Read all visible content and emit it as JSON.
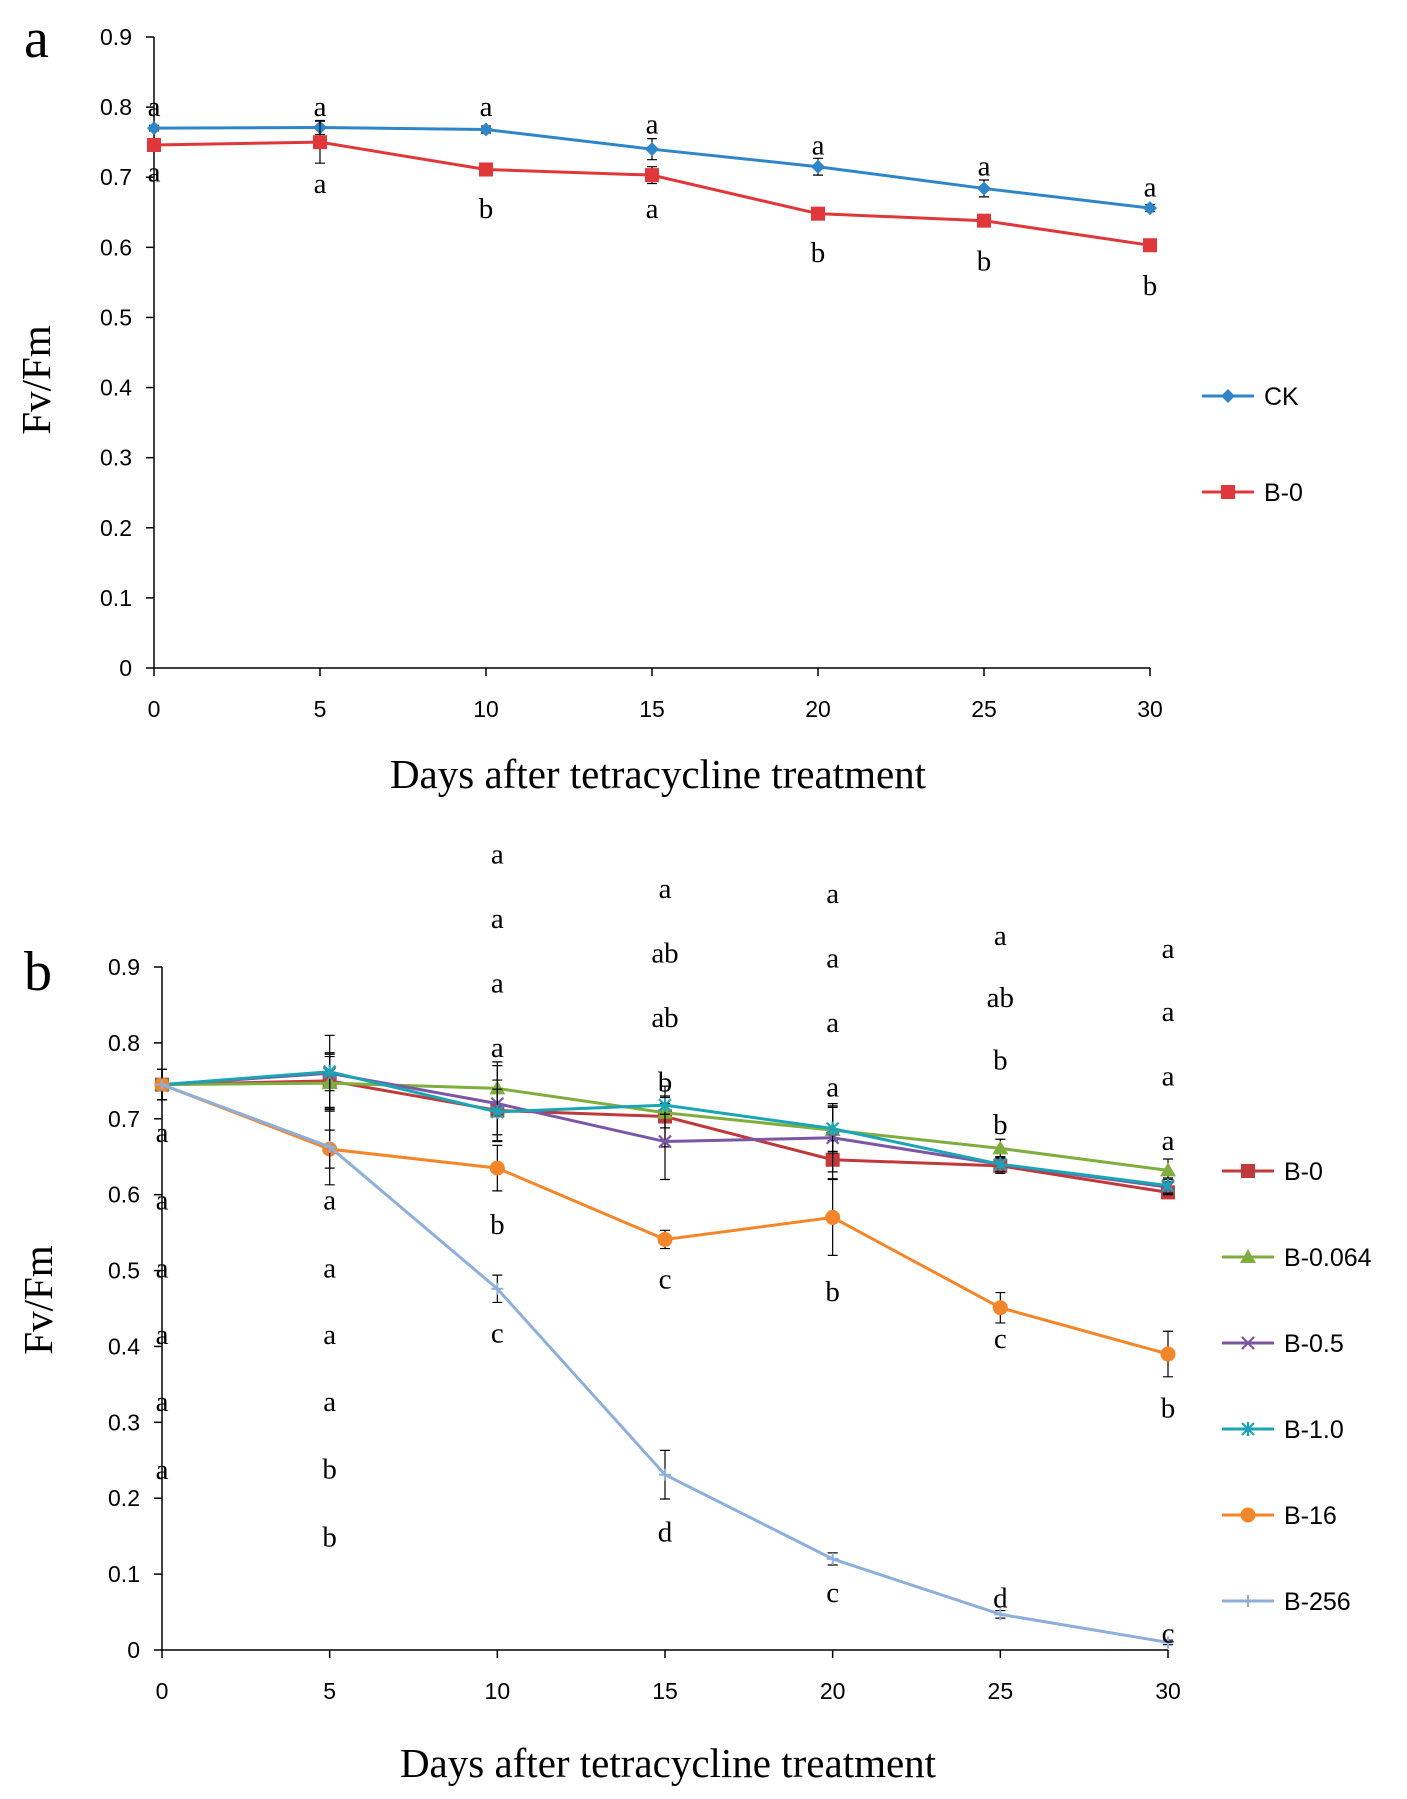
{
  "chart_data": [
    {
      "panel_label": "a",
      "type": "line",
      "xlabel": "Days after tetracycline treatment",
      "ylabel": "Fv/Fm",
      "xlim": [
        0,
        30
      ],
      "ylim": [
        0,
        0.9
      ],
      "x_ticks": [
        "0",
        "5",
        "10",
        "15",
        "20",
        "25",
        "30"
      ],
      "y_ticks": [
        "0",
        "0.1",
        "0.2",
        "0.3",
        "0.4",
        "0.5",
        "0.6",
        "0.7",
        "0.8",
        "0.9"
      ],
      "x": [
        0,
        5,
        10,
        15,
        20,
        25,
        30
      ],
      "legend_position": "right",
      "series": [
        {
          "name": "CK",
          "color": "#2e86c8",
          "marker": "diamond",
          "values": [
            0.77,
            0.771,
            0.768,
            0.74,
            0.715,
            0.684,
            0.656
          ],
          "errors": [
            0.004,
            0.01,
            0.005,
            0.015,
            0.012,
            0.012,
            0.005
          ]
        },
        {
          "name": "B-0",
          "color": "#e0373a",
          "marker": "square",
          "values": [
            0.746,
            0.75,
            0.711,
            0.703,
            0.648,
            0.638,
            0.603
          ],
          "errors": [
            0.005,
            0.03,
            0.005,
            0.012,
            0.006,
            0.008,
            0.005
          ]
        }
      ],
      "annotations": [
        {
          "x": 0,
          "y": 0.8,
          "text": "a"
        },
        {
          "x": 0,
          "y": 0.707,
          "text": "a"
        },
        {
          "x": 5,
          "y": 0.8,
          "text": "a"
        },
        {
          "x": 5,
          "y": 0.69,
          "text": "a"
        },
        {
          "x": 10,
          "y": 0.8,
          "text": "a"
        },
        {
          "x": 10,
          "y": 0.655,
          "text": "b"
        },
        {
          "x": 15,
          "y": 0.775,
          "text": "a"
        },
        {
          "x": 15,
          "y": 0.655,
          "text": "a"
        },
        {
          "x": 20,
          "y": 0.745,
          "text": "a"
        },
        {
          "x": 20,
          "y": 0.592,
          "text": "b"
        },
        {
          "x": 25,
          "y": 0.715,
          "text": "a"
        },
        {
          "x": 25,
          "y": 0.58,
          "text": "b"
        },
        {
          "x": 30,
          "y": 0.685,
          "text": "a"
        },
        {
          "x": 30,
          "y": 0.545,
          "text": "b"
        }
      ]
    },
    {
      "panel_label": "b",
      "type": "line",
      "xlabel": "Days after tetracycline treatment",
      "ylabel": "Fv/Fm",
      "xlim": [
        0,
        30
      ],
      "ylim": [
        0,
        0.9
      ],
      "x_ticks": [
        "0",
        "5",
        "10",
        "15",
        "20",
        "25",
        "30"
      ],
      "y_ticks": [
        "0",
        "0.1",
        "0.2",
        "0.3",
        "0.4",
        "0.5",
        "0.6",
        "0.7",
        "0.8",
        "0.9"
      ],
      "x": [
        0,
        5,
        10,
        15,
        20,
        25,
        30
      ],
      "legend_position": "right",
      "series": [
        {
          "name": "B-0",
          "color": "#c0393b",
          "marker": "square",
          "values": [
            0.745,
            0.75,
            0.711,
            0.703,
            0.646,
            0.638,
            0.603
          ],
          "errors": [
            0.02,
            0.035,
            0.04,
            0.04,
            0.025,
            0.01,
            0.008
          ]
        },
        {
          "name": "B-0.064",
          "color": "#7fae3e",
          "marker": "triangle",
          "values": [
            0.745,
            0.747,
            0.74,
            0.708,
            0.685,
            0.661,
            0.632
          ],
          "errors": [
            0.02,
            0.035,
            0.035,
            0.02,
            0.03,
            0.012,
            0.015
          ]
        },
        {
          "name": "B-0.5",
          "color": "#7b56a4",
          "marker": "x",
          "values": [
            0.745,
            0.76,
            0.72,
            0.67,
            0.675,
            0.64,
            0.61
          ],
          "errors": [
            0.02,
            0.05,
            0.05,
            0.05,
            0.045,
            0.01,
            0.01
          ]
        },
        {
          "name": "B-1.0",
          "color": "#1aa5b5",
          "marker": "star",
          "values": [
            0.745,
            0.762,
            0.709,
            0.718,
            0.687,
            0.64,
            0.612
          ],
          "errors": [
            0.02,
            0.025,
            0.03,
            0.012,
            0.03,
            0.01,
            0.01
          ]
        },
        {
          "name": "B-16",
          "color": "#f4862a",
          "marker": "circle",
          "values": [
            0.745,
            0.66,
            0.635,
            0.541,
            0.57,
            0.451,
            0.39
          ],
          "errors": [
            0.02,
            0.025,
            0.03,
            0.012,
            0.05,
            0.02,
            0.03
          ]
        },
        {
          "name": "B-256",
          "color": "#8eaedb",
          "marker": "plus",
          "values": [
            0.745,
            0.663,
            0.476,
            0.231,
            0.12,
            0.047,
            0.01
          ],
          "errors": [
            0.02,
            0.05,
            0.018,
            0.032,
            0.008,
            0.005,
            0.003
          ]
        }
      ],
      "annotations": [
        {
          "x": 10,
          "y": 1.048,
          "text": "a"
        },
        {
          "x": 10,
          "y": 0.963,
          "text": "a"
        },
        {
          "x": 10,
          "y": 0.878,
          "text": "a"
        },
        {
          "x": 10,
          "y": 0.793,
          "text": "a"
        },
        {
          "x": 10,
          "y": 0.56,
          "text": "b"
        },
        {
          "x": 10,
          "y": 0.417,
          "text": "c"
        },
        {
          "x": 15,
          "y": 1.003,
          "text": "a"
        },
        {
          "x": 15,
          "y": 0.918,
          "text": "ab"
        },
        {
          "x": 15,
          "y": 0.833,
          "text": "ab"
        },
        {
          "x": 15,
          "y": 0.748,
          "text": "b"
        },
        {
          "x": 15,
          "y": 0.488,
          "text": "c"
        },
        {
          "x": 15,
          "y": 0.155,
          "text": "d"
        },
        {
          "x": 20,
          "y": 0.996,
          "text": "a"
        },
        {
          "x": 20,
          "y": 0.911,
          "text": "a"
        },
        {
          "x": 20,
          "y": 0.826,
          "text": "a"
        },
        {
          "x": 20,
          "y": 0.741,
          "text": "a"
        },
        {
          "x": 20,
          "y": 0.472,
          "text": "b"
        },
        {
          "x": 20,
          "y": 0.075,
          "text": "c"
        },
        {
          "x": 25,
          "y": 0.941,
          "text": "a"
        },
        {
          "x": 25,
          "y": 0.859,
          "text": "ab"
        },
        {
          "x": 25,
          "y": 0.777,
          "text": "b"
        },
        {
          "x": 25,
          "y": 0.692,
          "text": "b"
        },
        {
          "x": 25,
          "y": 0.41,
          "text": "c"
        },
        {
          "x": 25,
          "y": 0.068,
          "text": "d"
        },
        {
          "x": 30,
          "y": 0.924,
          "text": "a"
        },
        {
          "x": 30,
          "y": 0.841,
          "text": "a"
        },
        {
          "x": 30,
          "y": 0.756,
          "text": "a"
        },
        {
          "x": 30,
          "y": 0.671,
          "text": "a"
        },
        {
          "x": 30,
          "y": 0.318,
          "text": "b"
        },
        {
          "x": 30,
          "y": 0.022,
          "text": "c"
        },
        {
          "x": 0,
          "y": 0.681,
          "text": "a"
        },
        {
          "x": 0,
          "y": 0.592,
          "text": "a"
        },
        {
          "x": 0,
          "y": 0.503,
          "text": "a"
        },
        {
          "x": 0,
          "y": 0.415,
          "text": "a"
        },
        {
          "x": 0,
          "y": 0.327,
          "text": "a"
        },
        {
          "x": 0,
          "y": 0.237,
          "text": "a"
        },
        {
          "x": 5,
          "y": 0.592,
          "text": "a"
        },
        {
          "x": 5,
          "y": 0.503,
          "text": "a"
        },
        {
          "x": 5,
          "y": 0.415,
          "text": "a"
        },
        {
          "x": 5,
          "y": 0.327,
          "text": "a"
        },
        {
          "x": 5,
          "y": 0.238,
          "text": "b"
        },
        {
          "x": 5,
          "y": 0.148,
          "text": "b"
        }
      ]
    }
  ]
}
